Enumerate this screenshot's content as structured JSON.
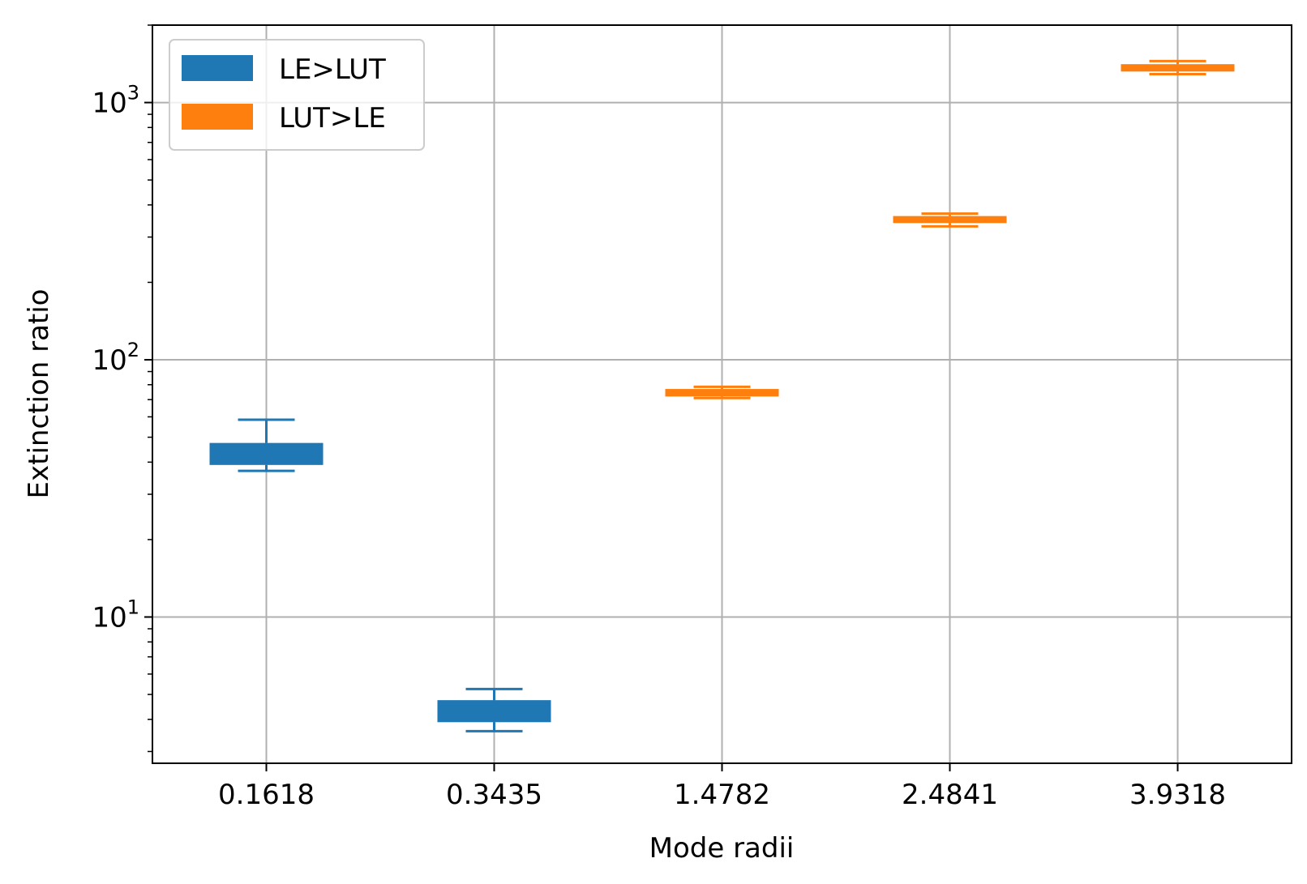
{
  "chart_data": {
    "type": "box",
    "xlabel": "Mode radii",
    "ylabel": "Extinction ratio",
    "yscale": "log",
    "ylim": [
      2.7,
      2000
    ],
    "grid": true,
    "legend": {
      "placement": "upper-left",
      "entries": [
        "LE>LUT",
        "LUT>LE"
      ]
    },
    "categories": [
      "0.1618",
      "0.3435",
      "1.4782",
      "2.4841",
      "3.9318"
    ],
    "yticks": [
      {
        "value": 10,
        "base": "10",
        "exp": "1"
      },
      {
        "value": 100,
        "base": "10",
        "exp": "2"
      },
      {
        "value": 1000,
        "base": "10",
        "exp": "3"
      }
    ],
    "series": [
      {
        "name": "LE>LUT",
        "color": "#1f77b4"
      },
      {
        "name": "LUT>LE",
        "color": "#ff7f0e"
      }
    ],
    "boxes": [
      {
        "category": "0.1618",
        "series": "LE>LUT",
        "whisker_low": 37,
        "q1": 39,
        "median": 43,
        "q3": 47.5,
        "whisker_high": 58.5
      },
      {
        "category": "0.3435",
        "series": "LE>LUT",
        "whisker_low": 3.6,
        "q1": 3.9,
        "median": 4.2,
        "q3": 4.75,
        "whisker_high": 5.25
      },
      {
        "category": "1.4782",
        "series": "LUT>LE",
        "whisker_low": 71,
        "q1": 72,
        "median": 75,
        "q3": 77,
        "whisker_high": 78.5
      },
      {
        "category": "2.4841",
        "series": "LUT>LE",
        "whisker_low": 330,
        "q1": 340,
        "median": 352,
        "q3": 362,
        "whisker_high": 370
      },
      {
        "category": "3.9318",
        "series": "LUT>LE",
        "whisker_low": 1290,
        "q1": 1320,
        "median": 1360,
        "q3": 1410,
        "whisker_high": 1450
      }
    ]
  }
}
